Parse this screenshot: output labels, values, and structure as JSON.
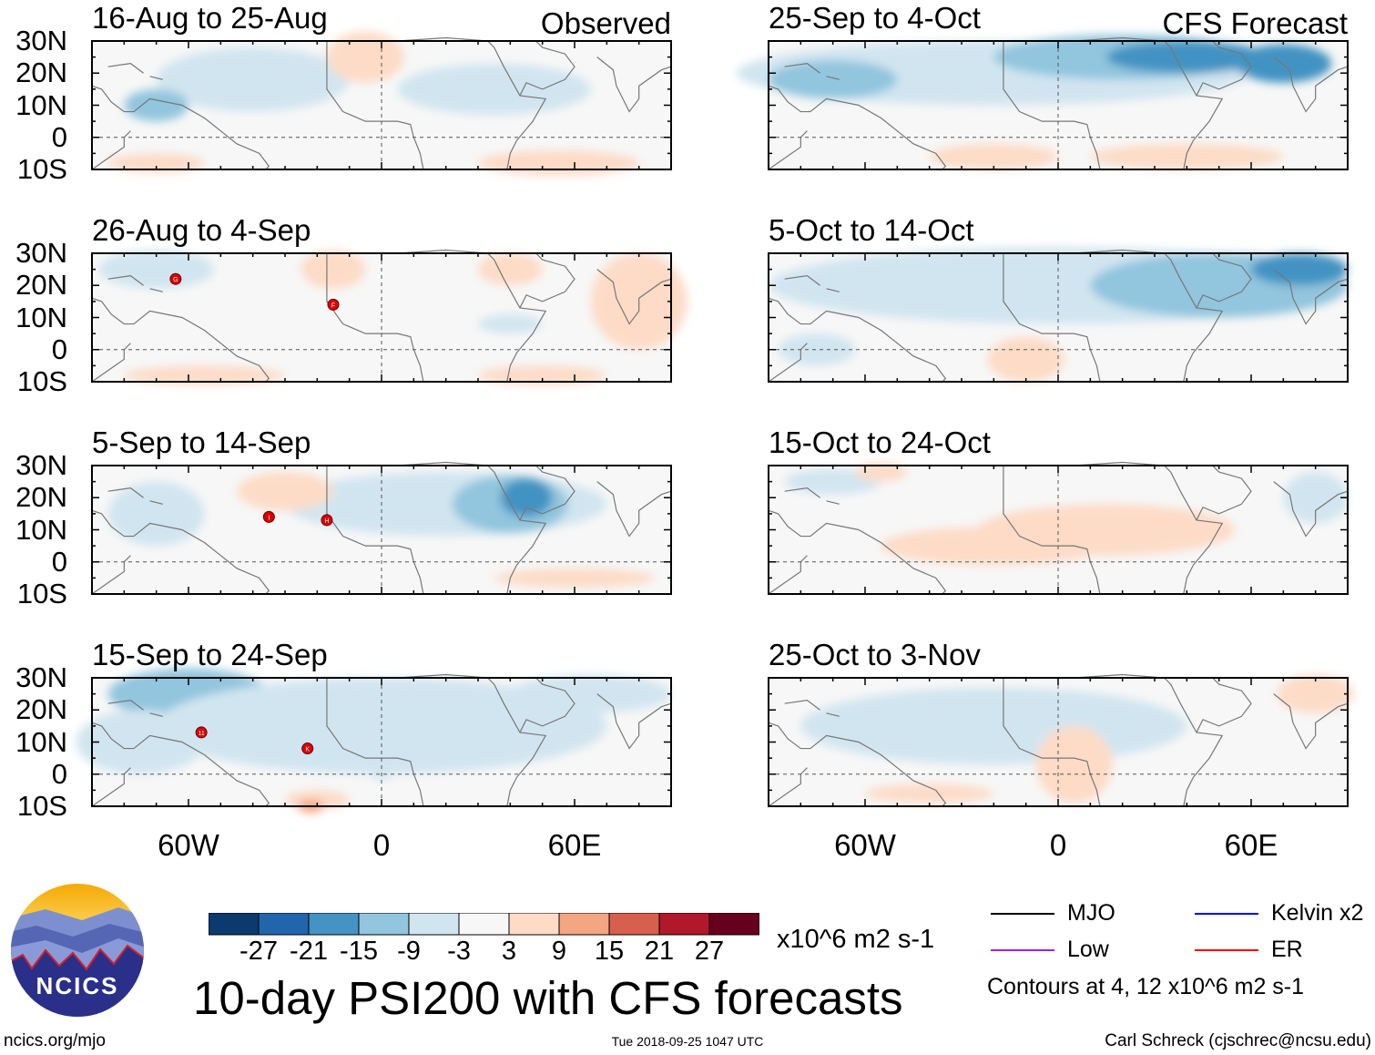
{
  "figure_title": "10-day PSI200 with CFS forecasts",
  "website": "ncics.org/mjo",
  "timestamp": "Tue 2018-09-25 1047 UTC",
  "author": "Carl Schreck (cjschrec@ncsu.edu)",
  "logo_text": "NCICS",
  "chart_data": {
    "type": "heatmap",
    "variable": "10-day PSI200 anomaly",
    "units": "x10^6 m2 s-1",
    "lat_ticks": [
      "30N",
      "20N",
      "10N",
      "0",
      "10S"
    ],
    "lon_ticks": [
      "60W",
      "0",
      "60E"
    ],
    "lat_range": [
      -10,
      30
    ],
    "lon_range": [
      -90,
      90
    ],
    "colorbar": {
      "levels": [
        "-27",
        "-21",
        "-15",
        "-9",
        "-3",
        "3",
        "9",
        "15",
        "21",
        "27"
      ],
      "colors": [
        "#0b3a6e",
        "#2166ac",
        "#4393c3",
        "#92c5de",
        "#d1e5f0",
        "#f7f7f7",
        "#fddbc7",
        "#f4a582",
        "#d6604d",
        "#b2182b",
        "#67001f"
      ]
    },
    "columns": [
      {
        "label": "Observed",
        "panels": [
          {
            "title": "16-Aug to 25-Aug",
            "storms": []
          },
          {
            "title": "26-Aug to 4-Sep",
            "storms": [
              "G",
              "F"
            ]
          },
          {
            "title": "5-Sep to 14-Sep",
            "storms": [
              "I",
              "H"
            ]
          },
          {
            "title": "15-Sep to 24-Sep",
            "storms": [
              "11",
              "K"
            ]
          }
        ]
      },
      {
        "label": "CFS Forecast",
        "panels": [
          {
            "title": "25-Sep to 4-Oct",
            "storms": []
          },
          {
            "title": "5-Oct to 14-Oct",
            "storms": []
          },
          {
            "title": "15-Oct to 24-Oct",
            "storms": []
          },
          {
            "title": "25-Oct to 3-Nov",
            "storms": []
          }
        ]
      }
    ]
  },
  "legend": {
    "items": [
      {
        "label": "MJO",
        "color": "#000000"
      },
      {
        "label": "Kelvin x2",
        "color": "#0000ff"
      },
      {
        "label": "Low",
        "color": "#a020f0"
      },
      {
        "label": "ER",
        "color": "#ff0000"
      }
    ],
    "contour_note": "Contours at 4, 12 x10^6 m2 s-1"
  }
}
